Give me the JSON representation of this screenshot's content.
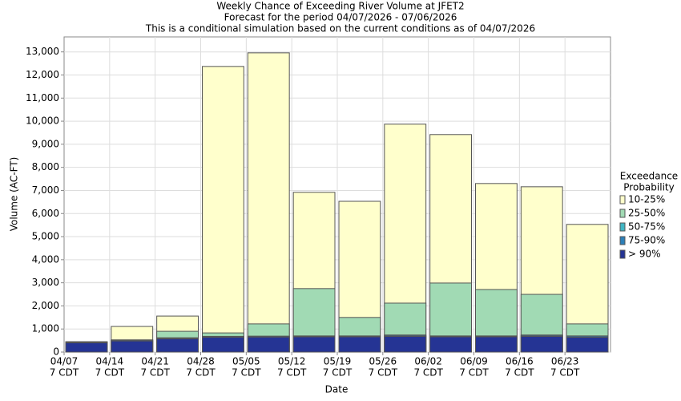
{
  "chart_data": {
    "type": "bar",
    "title": "Weekly Chance of Exceeding River Volume at JFET2",
    "subtitle": "Forecast for the period 04/07/2026 - 07/06/2026",
    "note": "This is a conditional simulation based on the current conditions as of 04/07/2026",
    "xlabel": "Date",
    "ylabel": "Volume (AC-FT)",
    "legend_title": [
      "Exceedance",
      "Probability"
    ],
    "categories": [
      [
        "04/07",
        "7 CDT"
      ],
      [
        "04/14",
        "7 CDT"
      ],
      [
        "04/21",
        "7 CDT"
      ],
      [
        "04/28",
        "7 CDT"
      ],
      [
        "05/05",
        "7 CDT"
      ],
      [
        "05/12",
        "7 CDT"
      ],
      [
        "05/19",
        "7 CDT"
      ],
      [
        "05/26",
        "7 CDT"
      ],
      [
        "06/02",
        "7 CDT"
      ],
      [
        "06/09",
        "7 CDT"
      ],
      [
        "06/16",
        "7 CDT"
      ],
      [
        "06/23",
        "7 CDT"
      ]
    ],
    "series": [
      {
        "name": "10-25%",
        "color": "#ffffcc",
        "values": [
          450,
          1110,
          1560,
          12370,
          12960,
          6920,
          6530,
          9870,
          9420,
          7300,
          7160,
          5530
        ]
      },
      {
        "name": "25-50%",
        "color": "#a1dab4",
        "values": [
          440,
          530,
          900,
          830,
          1220,
          2750,
          1500,
          2120,
          2990,
          2710,
          2500,
          1220
        ]
      },
      {
        "name": "50-75%",
        "color": "#41b6c4",
        "values": [
          430,
          520,
          620,
          680,
          690,
          700,
          700,
          740,
          700,
          700,
          740,
          700
        ]
      },
      {
        "name": "75-90%",
        "color": "#2c7fb8",
        "values": [
          420,
          510,
          600,
          670,
          680,
          690,
          690,
          720,
          690,
          690,
          720,
          690
        ]
      },
      {
        "name": "> 90%",
        "color": "#253494",
        "values": [
          400,
          480,
          570,
          640,
          650,
          660,
          660,
          680,
          660,
          660,
          680,
          640
        ]
      }
    ],
    "ylim": [
      0,
      13650
    ],
    "yticks": [
      0,
      {
        "value": 1000,
        "label": "1,000"
      },
      {
        "value": 2000,
        "label": "2,000"
      },
      {
        "value": 3000,
        "label": "3,000"
      },
      {
        "value": 4000,
        "label": "4,000"
      },
      {
        "value": 5000,
        "label": "5,000"
      },
      {
        "value": 6000,
        "label": "6,000"
      },
      {
        "value": 7000,
        "label": "7,000"
      },
      {
        "value": 8000,
        "label": "8,000"
      },
      {
        "value": 9000,
        "label": "9,000"
      },
      {
        "value": 10000,
        "label": "10,000"
      },
      {
        "value": 11000,
        "label": "11,000"
      },
      {
        "value": 12000,
        "label": "12,000"
      },
      {
        "value": 13000,
        "label": "13,000"
      }
    ],
    "grid": true
  }
}
